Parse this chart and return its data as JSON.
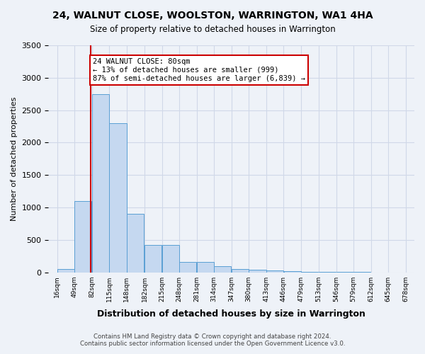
{
  "title_line1": "24, WALNUT CLOSE, WOOLSTON, WARRINGTON, WA1 4HA",
  "title_line2": "Size of property relative to detached houses in Warrington",
  "xlabel": "Distribution of detached houses by size in Warrington",
  "ylabel": "Number of detached properties",
  "bar_color": "#c5d8f0",
  "bar_edge_color": "#5a9fd4",
  "property_line_x": 80,
  "property_line_color": "#cc0000",
  "annotation_text": "24 WALNUT CLOSE: 80sqm\n← 13% of detached houses are smaller (999)\n87% of semi-detached houses are larger (6,839) →",
  "annotation_box_color": "#ffffff",
  "annotation_box_edge": "#cc0000",
  "grid_color": "#d0d8e8",
  "background_color": "#eef2f8",
  "footer_line1": "Contains HM Land Registry data © Crown copyright and database right 2024.",
  "footer_line2": "Contains public sector information licensed under the Open Government Licence v3.0.",
  "ylim": [
    0,
    3500
  ],
  "yticks": [
    0,
    500,
    1000,
    1500,
    2000,
    2500,
    3000,
    3500
  ],
  "bin_edges": [
    16,
    49,
    82,
    115,
    148,
    182,
    215,
    248,
    281,
    314,
    347,
    380,
    413,
    446,
    479,
    513,
    546,
    579,
    612,
    645,
    678
  ],
  "bin_labels": [
    "16sqm",
    "49sqm",
    "82sqm",
    "115sqm",
    "148sqm",
    "182sqm",
    "215sqm",
    "248sqm",
    "281sqm",
    "314sqm",
    "347sqm",
    "380sqm",
    "413sqm",
    "446sqm",
    "479sqm",
    "513sqm",
    "546sqm",
    "579sqm",
    "612sqm",
    "645sqm",
    "678sqm"
  ],
  "bar_heights": [
    50,
    1100,
    2750,
    2300,
    900,
    420,
    420,
    160,
    155,
    90,
    55,
    45,
    30,
    15,
    5,
    3,
    2,
    2,
    1,
    1
  ]
}
